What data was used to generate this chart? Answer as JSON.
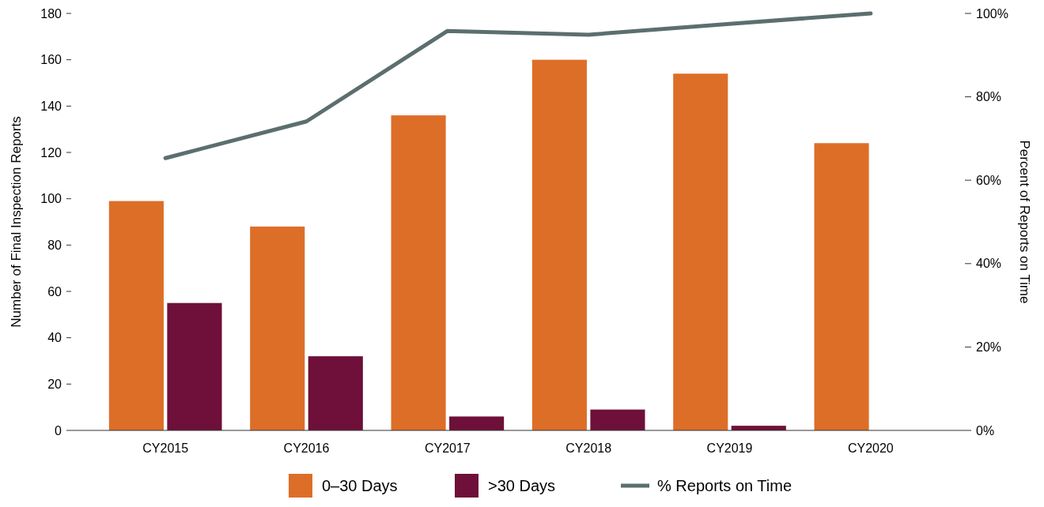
{
  "chart_data": {
    "type": "bar",
    "categories": [
      "CY2015",
      "CY2016",
      "CY2017",
      "CY2018",
      "CY2019",
      "CY2020"
    ],
    "ylabel": "Number of Final Inspection Reports",
    "y2label": "Percent of Reports on Time",
    "ylim": [
      0,
      180
    ],
    "yticks": [
      0,
      20,
      40,
      60,
      80,
      100,
      120,
      140,
      160,
      180
    ],
    "y2lim": [
      0,
      100
    ],
    "y2ticks": [
      {
        "value": 0,
        "label": "0%"
      },
      {
        "value": 20,
        "label": "20%"
      },
      {
        "value": 40,
        "label": "40%"
      },
      {
        "value": 60,
        "label": "60%"
      },
      {
        "value": 80,
        "label": "80%"
      },
      {
        "value": 100,
        "label": "100%"
      }
    ],
    "legend": "bottom",
    "grid": false,
    "series": [
      {
        "name": "0–30 Days",
        "color": "#dd6e28",
        "values": [
          99,
          88,
          136,
          160,
          154,
          124
        ]
      },
      {
        "name": ">30 Days",
        "color": "#6e1039",
        "values": [
          55,
          32,
          6,
          9,
          2,
          0
        ]
      },
      {
        "name": "% Reports on Time",
        "type": "line",
        "axis": "y2",
        "color": "#5c6e6e",
        "values": [
          65.3,
          74.1,
          95.8,
          94.9,
          97.5,
          100
        ]
      }
    ]
  }
}
